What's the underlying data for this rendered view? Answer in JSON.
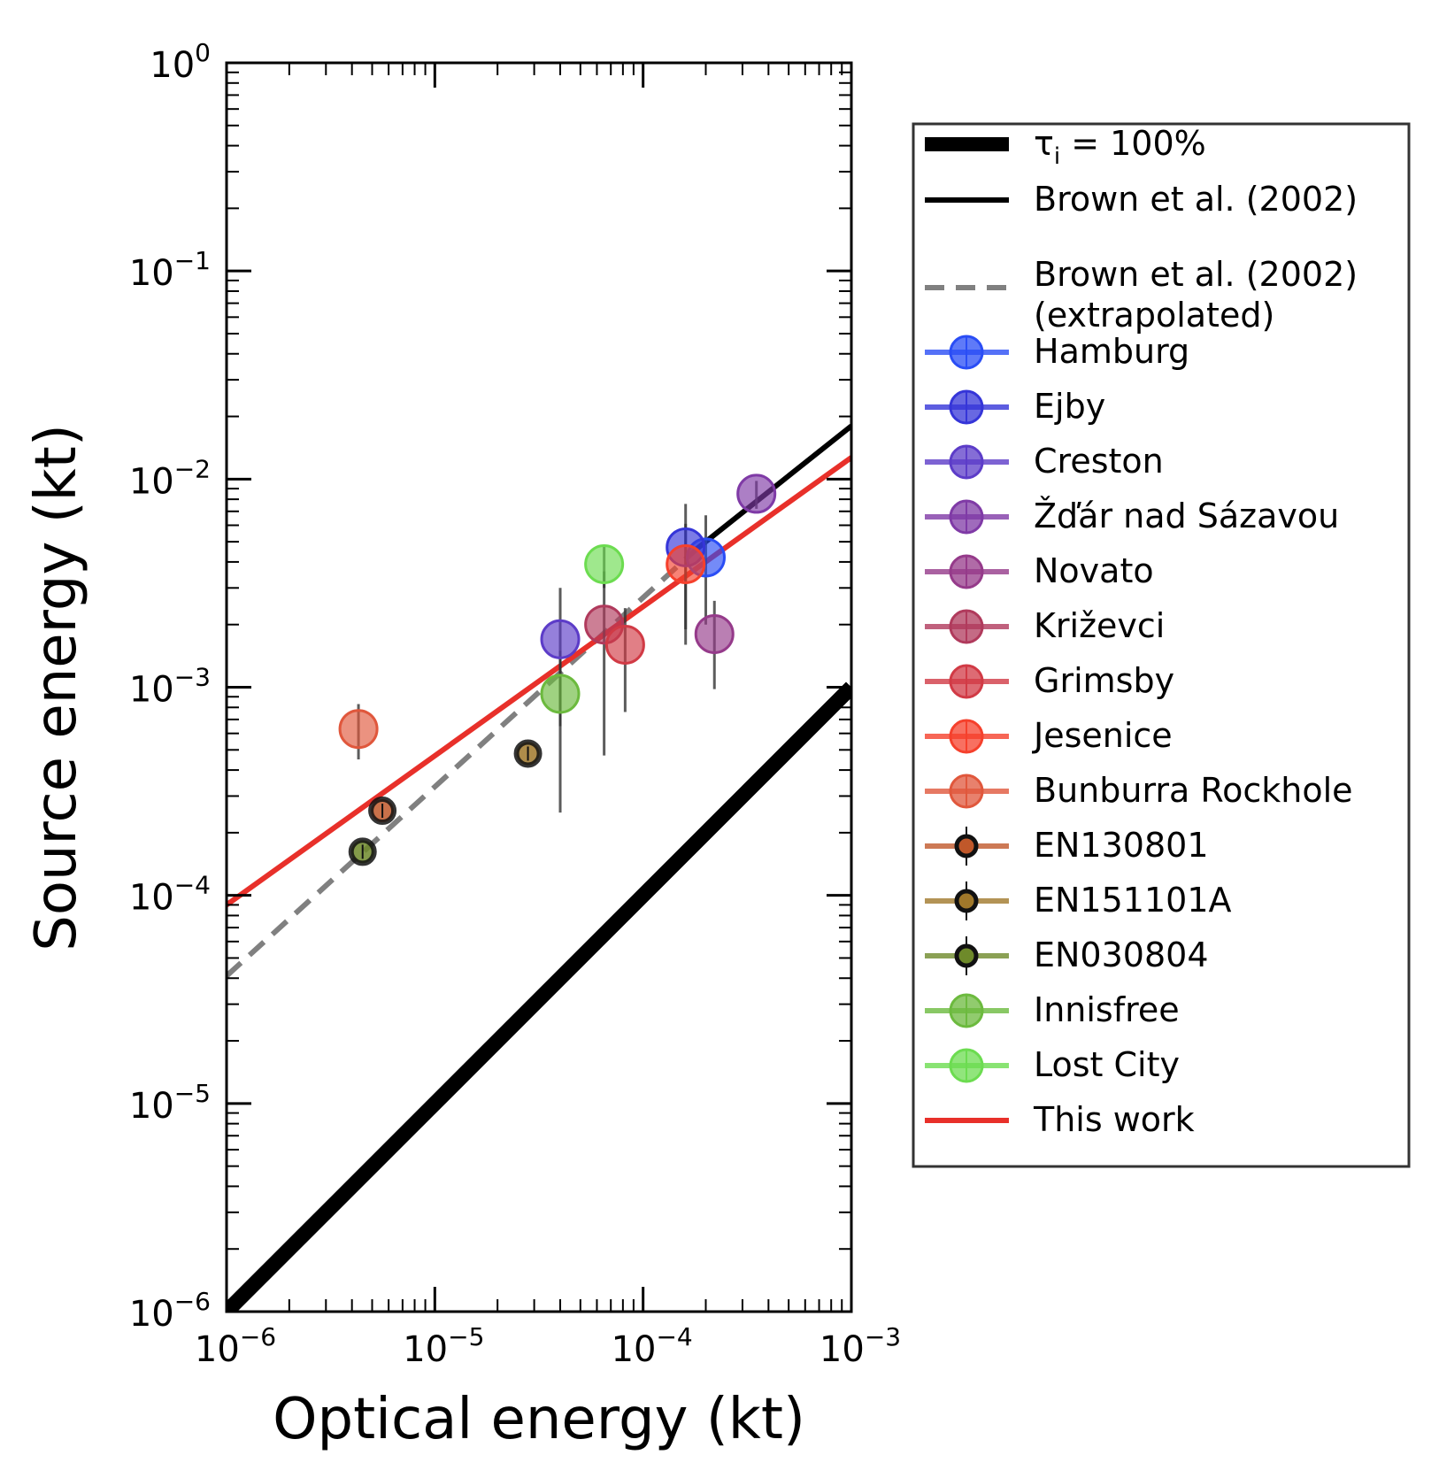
{
  "chart_data": {
    "type": "scatter",
    "xlabel": "Optical energy (kt)",
    "ylabel": "Source energy (kt)",
    "xscale": "log",
    "yscale": "log",
    "xlim": [
      1e-06,
      0.001
    ],
    "ylim": [
      1e-06,
      1
    ],
    "x_ticks": [
      {
        "base": "10",
        "exp": "−6",
        "value": 1e-06
      },
      {
        "base": "10",
        "exp": "−5",
        "value": 1e-05
      },
      {
        "base": "10",
        "exp": "−4",
        "value": 0.0001
      },
      {
        "base": "10",
        "exp": "−3",
        "value": 0.001
      }
    ],
    "y_ticks": [
      {
        "base": "10",
        "exp": "−6",
        "value": 1e-06
      },
      {
        "base": "10",
        "exp": "−5",
        "value": 1e-05
      },
      {
        "base": "10",
        "exp": "−4",
        "value": 0.0001
      },
      {
        "base": "10",
        "exp": "−3",
        "value": 0.001
      },
      {
        "base": "10",
        "exp": "−2",
        "value": 0.01
      },
      {
        "base": "10",
        "exp": "−1",
        "value": 0.1
      },
      {
        "base": "10",
        "exp": "0",
        "value": 1
      }
    ],
    "grid": false,
    "legend_position": "outside-right",
    "lines": [
      {
        "name": "τᵢ = 100%",
        "style": "solid",
        "width": "thick",
        "color": "#000000",
        "x": [
          1e-06,
          0.001
        ],
        "y": [
          1e-06,
          0.001
        ]
      },
      {
        "name": "Brown et al. (2002)",
        "style": "solid",
        "width": "normal",
        "color": "#000000",
        "x": [
          0.00018,
          0.001
        ],
        "y": [
          0.0046,
          0.018
        ]
      },
      {
        "name": "Brown et al. (2002) (extrapolated)",
        "style": "dashed",
        "width": "normal",
        "color": "#808080",
        "x": [
          1e-06,
          0.00018
        ],
        "y": [
          4.1e-05,
          0.0046
        ]
      },
      {
        "name": "This work",
        "style": "solid",
        "width": "normal",
        "color": "#e8302a",
        "x": [
          1e-06,
          0.001
        ],
        "y": [
          9e-05,
          0.0127
        ]
      }
    ],
    "series": [
      {
        "name": "Hamburg",
        "color": "#2a4df5",
        "marker": "large",
        "x": 0.0002,
        "y": 0.0042,
        "yerr": [
          0.002,
          0.0067
        ]
      },
      {
        "name": "Ejby",
        "color": "#3535d8",
        "marker": "large",
        "x": 0.00016,
        "y": 0.0047,
        "yerr": [
          0.0019,
          0.0076
        ]
      },
      {
        "name": "Creston",
        "color": "#5c3cc8",
        "marker": "large",
        "x": 4e-05,
        "y": 0.0017,
        "yerr": [
          0.00065,
          0.003
        ]
      },
      {
        "name": "Žďár nad Sázavou",
        "color": "#7f3aa6",
        "marker": "large",
        "x": 0.00035,
        "y": 0.0085,
        "yerr": [
          0.0072,
          0.0098
        ]
      },
      {
        "name": "Novato",
        "color": "#953a8a",
        "marker": "large",
        "x": 0.00022,
        "y": 0.0018,
        "yerr": [
          0.00098,
          0.0026
        ]
      },
      {
        "name": "Križevci",
        "color": "#b03a5c",
        "marker": "large",
        "x": 6.5e-05,
        "y": 0.002,
        "yerr": [
          0.00047,
          0.0036
        ]
      },
      {
        "name": "Grimsby",
        "color": "#d13a45",
        "marker": "large",
        "x": 8.2e-05,
        "y": 0.0016,
        "yerr": [
          0.00076,
          0.0024
        ]
      },
      {
        "name": "Jesenice",
        "color": "#f5402c",
        "marker": "large",
        "x": 0.00016,
        "y": 0.0039,
        "yerr": [
          0.0016,
          0.0061
        ]
      },
      {
        "name": "Bunburra Rockhole",
        "color": "#e0573c",
        "marker": "large",
        "x": 4.3e-06,
        "y": 0.00063,
        "yerr": [
          0.00045,
          0.00083
        ]
      },
      {
        "name": "EN130801",
        "color": "#c0582a",
        "marker": "small",
        "x": 5.6e-06,
        "y": 0.000255
      },
      {
        "name": "EN151101A",
        "color": "#a0782a",
        "marker": "small",
        "x": 2.8e-05,
        "y": 0.00048
      },
      {
        "name": "EN030804",
        "color": "#6e8a2a",
        "marker": "small",
        "x": 4.5e-06,
        "y": 0.000162
      },
      {
        "name": "Innisfree",
        "color": "#6cba3e",
        "marker": "large",
        "x": 4e-05,
        "y": 0.00093,
        "yerr": [
          0.00025,
          0.0015
        ]
      },
      {
        "name": "Lost City",
        "color": "#6cdc50",
        "marker": "large",
        "x": 6.5e-05,
        "y": 0.0039,
        "yerr": [
          0.003,
          0.0048
        ]
      }
    ],
    "legend": [
      {
        "label": "τ",
        "sub": "i",
        "suffix": " = 100%",
        "kind": "line-thick",
        "color": "#000000"
      },
      {
        "label": "Brown et al. (2002)",
        "kind": "line",
        "color": "#000000"
      },
      {
        "label": "Brown et al. (2002)",
        "label2": " (extrapolated)",
        "kind": "line-dashed",
        "color": "#808080"
      },
      {
        "label": "Hamburg",
        "kind": "marker-large",
        "color": "#2a4df5"
      },
      {
        "label": "Ejby",
        "kind": "marker-large",
        "color": "#3535d8"
      },
      {
        "label": "Creston",
        "kind": "marker-large",
        "color": "#5c3cc8"
      },
      {
        "label": "Žďár nad Sázavou",
        "kind": "marker-large",
        "color": "#7f3aa6"
      },
      {
        "label": "Novato",
        "kind": "marker-large",
        "color": "#953a8a"
      },
      {
        "label": "Križevci",
        "kind": "marker-large",
        "color": "#b03a5c"
      },
      {
        "label": "Grimsby",
        "kind": "marker-large",
        "color": "#d13a45"
      },
      {
        "label": "Jesenice",
        "kind": "marker-large",
        "color": "#f5402c"
      },
      {
        "label": "Bunburra Rockhole",
        "kind": "marker-large",
        "color": "#e0573c"
      },
      {
        "label": "EN130801",
        "kind": "marker-small",
        "color": "#c0582a"
      },
      {
        "label": "EN151101A",
        "kind": "marker-small",
        "color": "#a0782a"
      },
      {
        "label": "EN030804",
        "kind": "marker-small",
        "color": "#6e8a2a"
      },
      {
        "label": "Innisfree",
        "kind": "marker-large",
        "color": "#6cba3e"
      },
      {
        "label": "Lost City",
        "kind": "marker-large",
        "color": "#6cdc50"
      },
      {
        "label": "This work",
        "kind": "line",
        "color": "#e8302a"
      }
    ]
  }
}
